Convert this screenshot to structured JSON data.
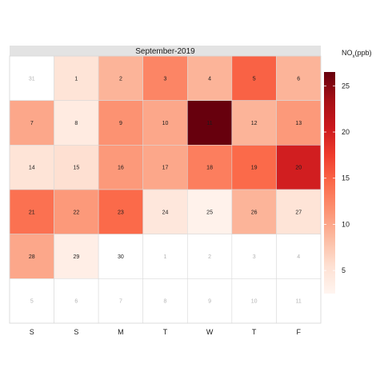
{
  "chart_data": {
    "type": "heatmap",
    "title": "September-2019",
    "weekday_labels": [
      "S",
      "S",
      "M",
      "T",
      "W",
      "T",
      "F"
    ],
    "legend": {
      "title_main": "NO",
      "title_sub": "x",
      "title_unit": "(ppb)",
      "ticks": [
        5,
        10,
        15,
        20,
        25
      ],
      "min": 2.5,
      "max": 26.5,
      "colors": [
        "#fff5f0",
        "#fee0d2",
        "#fcbba1",
        "#fc9272",
        "#fb6a4a",
        "#ef3b2c",
        "#cb181d",
        "#a50f15",
        "#67000d"
      ]
    },
    "weeks": [
      [
        {
          "day": "31",
          "value": null,
          "in_month": false
        },
        {
          "day": "1",
          "value": 5
        },
        {
          "day": "2",
          "value": 9
        },
        {
          "day": "3",
          "value": 12.5
        },
        {
          "day": "4",
          "value": 9
        },
        {
          "day": "5",
          "value": 15
        },
        {
          "day": "6",
          "value": 9
        }
      ],
      [
        {
          "day": "7",
          "value": 10
        },
        {
          "day": "8",
          "value": 4
        },
        {
          "day": "9",
          "value": 11.5
        },
        {
          "day": "10",
          "value": 10
        },
        {
          "day": "11",
          "value": 26.5
        },
        {
          "day": "12",
          "value": 9
        },
        {
          "day": "13",
          "value": 11
        }
      ],
      [
        {
          "day": "14",
          "value": 5
        },
        {
          "day": "15",
          "value": 5.5
        },
        {
          "day": "16",
          "value": 11
        },
        {
          "day": "17",
          "value": 10
        },
        {
          "day": "18",
          "value": 13
        },
        {
          "day": "19",
          "value": 14.5
        },
        {
          "day": "20",
          "value": 20
        }
      ],
      [
        {
          "day": "21",
          "value": 14
        },
        {
          "day": "22",
          "value": 11
        },
        {
          "day": "23",
          "value": 14.5
        },
        {
          "day": "24",
          "value": 4.5
        },
        {
          "day": "25",
          "value": 3
        },
        {
          "day": "26",
          "value": 9
        },
        {
          "day": "27",
          "value": 5
        }
      ],
      [
        {
          "day": "28",
          "value": 10
        },
        {
          "day": "29",
          "value": 3.5
        },
        {
          "day": "30",
          "value": null
        },
        {
          "day": "1",
          "value": null,
          "in_month": false
        },
        {
          "day": "2",
          "value": null,
          "in_month": false
        },
        {
          "day": "3",
          "value": null,
          "in_month": false
        },
        {
          "day": "4",
          "value": null,
          "in_month": false
        }
      ],
      [
        {
          "day": "5",
          "value": null,
          "in_month": false
        },
        {
          "day": "6",
          "value": null,
          "in_month": false
        },
        {
          "day": "7",
          "value": null,
          "in_month": false
        },
        {
          "day": "8",
          "value": null,
          "in_month": false
        },
        {
          "day": "9",
          "value": null,
          "in_month": false
        },
        {
          "day": "10",
          "value": null,
          "in_month": false
        },
        {
          "day": "11",
          "value": null,
          "in_month": false
        }
      ]
    ]
  }
}
